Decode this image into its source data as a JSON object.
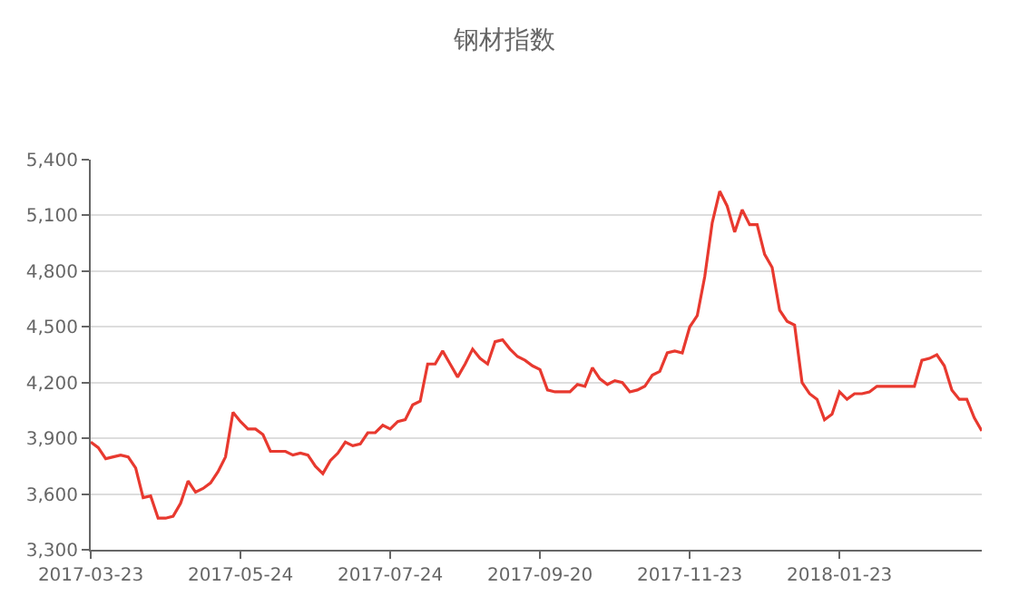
{
  "chart_data": {
    "type": "line",
    "title": "钢材指数",
    "categories": [
      "2017-03-23",
      null,
      null,
      null,
      null,
      null,
      null,
      null,
      null,
      null,
      null,
      null,
      null,
      null,
      null,
      null,
      null,
      null,
      null,
      null,
      "2017-05-24",
      null,
      null,
      null,
      null,
      null,
      null,
      null,
      null,
      null,
      null,
      null,
      null,
      null,
      null,
      null,
      null,
      null,
      null,
      null,
      "2017-07-24",
      null,
      null,
      null,
      null,
      null,
      null,
      null,
      null,
      null,
      null,
      null,
      null,
      null,
      null,
      null,
      null,
      null,
      null,
      null,
      "2017-09-20",
      null,
      null,
      null,
      null,
      null,
      null,
      null,
      null,
      null,
      null,
      null,
      null,
      null,
      null,
      null,
      null,
      null,
      null,
      null,
      "2017-11-23",
      null,
      null,
      null,
      null,
      null,
      null,
      null,
      null,
      null,
      null,
      null,
      null,
      null,
      null,
      null,
      null,
      null,
      null,
      null,
      "2018-01-23",
      null,
      null,
      null,
      null,
      null,
      null,
      null,
      null,
      null,
      null,
      null,
      null,
      null,
      null,
      null,
      null,
      null,
      null,
      null
    ],
    "series": [
      {
        "color": "#e8392f",
        "values": [
          3880,
          3850,
          3790,
          3800,
          3810,
          3800,
          3740,
          3580,
          3590,
          3470,
          3470,
          3480,
          3550,
          3670,
          3610,
          3630,
          3660,
          3720,
          3800,
          4040,
          3990,
          3950,
          3950,
          3920,
          3830,
          3830,
          3830,
          3810,
          3820,
          3810,
          3750,
          3710,
          3780,
          3820,
          3880,
          3860,
          3870,
          3930,
          3930,
          3970,
          3950,
          3990,
          4000,
          4080,
          4100,
          4300,
          4300,
          4370,
          4300,
          4230,
          4300,
          4380,
          4330,
          4300,
          4420,
          4430,
          4380,
          4340,
          4320,
          4290,
          4270,
          4160,
          4150,
          4150,
          4150,
          4190,
          4180,
          4280,
          4220,
          4190,
          4210,
          4200,
          4150,
          4160,
          4180,
          4240,
          4260,
          4360,
          4370,
          4360,
          4500,
          4560,
          4770,
          5060,
          5230,
          5150,
          5010,
          5130,
          5050,
          5050,
          4890,
          4820,
          4590,
          4530,
          4510,
          4200,
          4140,
          4110,
          4000,
          4030,
          4150,
          4110,
          4140,
          4140,
          4150,
          4180,
          4180,
          4180,
          4180,
          4180,
          4180,
          4320,
          4330,
          4350,
          4290,
          4160,
          4110,
          4110,
          4010,
          3940
        ]
      }
    ],
    "ylim": [
      3300,
      5400
    ],
    "yticks": [
      {
        "value": 3300,
        "label": "3,300"
      },
      {
        "value": 3600,
        "label": "3,600"
      },
      {
        "value": 3900,
        "label": "3,900"
      },
      {
        "value": 4200,
        "label": "4,200"
      },
      {
        "value": 4500,
        "label": "4,500"
      },
      {
        "value": 4800,
        "label": "4,800"
      },
      {
        "value": 5100,
        "label": "5,100"
      },
      {
        "value": 5400,
        "label": "5,400"
      }
    ],
    "grid": "y",
    "marker": "none",
    "line_style": "solid"
  }
}
